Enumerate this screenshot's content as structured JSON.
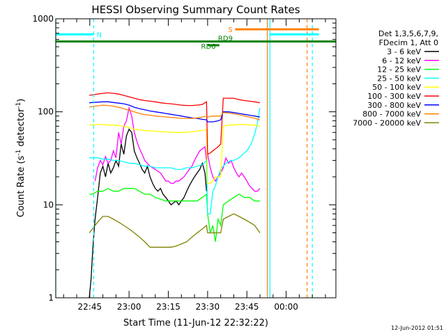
{
  "chart_data": {
    "type": "line",
    "title": "HESSI Observing Summary Count Rates",
    "xlabel": "Start Time (11-Jun-12 22:32:22)",
    "ylabel_parts": {
      "main": "Count Rate (s",
      "sup1": "-1",
      "mid": " detector",
      "sup2": "-1",
      "end": ")"
    },
    "y_scale": "log",
    "ylim": [
      1,
      1000
    ],
    "y_ticks": [
      {
        "value": 1,
        "label": "1"
      },
      {
        "value": 10,
        "label": "10"
      },
      {
        "value": 100,
        "label": "100"
      },
      {
        "value": 1000,
        "label": "1000"
      }
    ],
    "xlim_minutes": [
      0,
      107
    ],
    "x_ticks": [
      {
        "min": 13,
        "label": "22:45"
      },
      {
        "min": 28,
        "label": "23:00"
      },
      {
        "min": 43,
        "label": "23:15"
      },
      {
        "min": 58,
        "label": "23:30"
      },
      {
        "min": 73,
        "label": "23:45"
      },
      {
        "min": 88,
        "label": "00:00"
      }
    ],
    "legend": {
      "position": "right",
      "header": [
        "Det 1,3,5,6,7,9,",
        "FDecim 1, Att 0"
      ],
      "entries": [
        {
          "label": "3 - 6 keV",
          "color": "#000000"
        },
        {
          "label": "6 - 12 keV",
          "color": "#ff00ff"
        },
        {
          "label": "12 - 25 keV",
          "color": "#00ff00"
        },
        {
          "label": "25 - 50 keV",
          "color": "#00ffff"
        },
        {
          "label": "50 - 100 keV",
          "color": "#ffff00"
        },
        {
          "label": "100 - 300 keV",
          "color": "#ff0000"
        },
        {
          "label": "300 - 800 keV",
          "color": "#0000ff"
        },
        {
          "label": "800 - 7000 keV",
          "color": "#ff8000"
        },
        {
          "label": "7000 - 20000 keV",
          "color": "#808000"
        }
      ]
    },
    "series": [
      {
        "name": "3 - 6 keV",
        "color": "#000000",
        "x": [
          12.8,
          13.5,
          14.2,
          15,
          16,
          17,
          18,
          19,
          20,
          21,
          22,
          23,
          24,
          25,
          26,
          27,
          28,
          29,
          30,
          31,
          32,
          33,
          34,
          35,
          36,
          37,
          38,
          39,
          40,
          41,
          42,
          43,
          44,
          45,
          46,
          47,
          48,
          49,
          50,
          51,
          52,
          53,
          54,
          55,
          56,
          57,
          57.6
        ],
        "y": [
          1,
          1.6,
          3.5,
          7,
          12,
          22,
          26,
          20,
          28,
          22,
          25,
          30,
          26,
          45,
          35,
          55,
          65,
          60,
          38,
          32,
          28,
          24,
          22,
          26,
          20,
          17,
          15,
          14,
          15,
          13,
          12,
          11,
          10,
          10.5,
          11,
          10,
          11,
          12,
          14,
          16,
          18,
          20,
          22,
          24,
          28,
          22,
          14
        ]
      },
      {
        "name": "6 - 12 keV",
        "color": "#ff00ff",
        "x": [
          15,
          16,
          17,
          18,
          19,
          20,
          21,
          22,
          23,
          24,
          25,
          26,
          27,
          28,
          29,
          30,
          31,
          32,
          33,
          34,
          35,
          36,
          37,
          38,
          39,
          40,
          41,
          42,
          43,
          44,
          45,
          46,
          47,
          48,
          49,
          50,
          51,
          52,
          53,
          54,
          55,
          56,
          57,
          57.6,
          58,
          59,
          60,
          61,
          62,
          63,
          64,
          65,
          66,
          67,
          68,
          69,
          70,
          71,
          72,
          73,
          74,
          75,
          76,
          77,
          78
        ],
        "y": [
          18,
          25,
          30,
          27,
          33,
          28,
          30,
          38,
          32,
          60,
          45,
          70,
          80,
          110,
          90,
          60,
          48,
          40,
          35,
          30,
          28,
          26,
          25,
          24,
          23,
          22,
          20,
          18,
          18,
          17,
          17,
          18,
          18,
          19,
          20,
          22,
          24,
          26,
          30,
          34,
          38,
          40,
          42,
          30,
          35,
          25,
          20,
          18,
          20,
          22,
          25,
          32,
          28,
          30,
          25,
          22,
          20,
          22,
          20,
          18,
          16,
          15,
          14,
          14,
          15
        ]
      },
      {
        "name": "12 - 25 keV",
        "color": "#00ff00",
        "x": [
          12.8,
          14,
          16,
          18,
          20,
          22,
          24,
          26,
          28,
          30,
          32,
          34,
          36,
          38,
          40,
          42,
          44,
          46,
          48,
          50,
          52,
          54,
          56,
          57.6,
          58,
          59,
          60,
          61,
          62,
          63,
          64,
          66,
          68,
          70,
          72,
          74,
          76,
          78
        ],
        "y": [
          13,
          13,
          14,
          14,
          15,
          14,
          14,
          15,
          15,
          15,
          14,
          13,
          13,
          12,
          11.5,
          11,
          11,
          11,
          11,
          11,
          11,
          11,
          12,
          13,
          8,
          5,
          6,
          4,
          7,
          6,
          10,
          11,
          12,
          13,
          12,
          12,
          11,
          11
        ]
      },
      {
        "name": "25 - 50 keV",
        "color": "#00ffff",
        "x": [
          12.8,
          14,
          16,
          18,
          20,
          22,
          24,
          26,
          28,
          30,
          32,
          34,
          36,
          38,
          40,
          42,
          44,
          46,
          48,
          50,
          52,
          54,
          56,
          57.6,
          58,
          59,
          60,
          61,
          62,
          63,
          64,
          65,
          66,
          67,
          68,
          69,
          70,
          71,
          72,
          73,
          74,
          75,
          76,
          77,
          78
        ],
        "y": [
          32,
          32,
          32,
          31,
          31,
          30,
          30,
          29,
          28,
          28,
          27,
          26,
          26,
          25,
          25,
          25,
          25,
          24,
          24,
          25,
          25,
          26,
          27,
          30,
          8,
          8,
          14,
          16,
          20,
          24,
          26,
          28,
          29,
          30,
          30,
          31,
          32,
          34,
          36,
          38,
          42,
          48,
          58,
          75,
          110
        ]
      },
      {
        "name": "50 - 100 keV",
        "color": "#ffff00",
        "x": [
          12.8,
          14,
          16,
          18,
          20,
          22,
          24,
          26,
          28,
          30,
          32,
          34,
          36,
          38,
          40,
          42,
          44,
          46,
          48,
          50,
          52,
          54,
          56,
          57.6,
          58,
          59,
          60,
          61,
          62,
          63,
          64,
          66,
          68,
          70,
          72,
          74,
          76,
          78
        ],
        "y": [
          72,
          72,
          73,
          73,
          72,
          72,
          71,
          70,
          68,
          65,
          64,
          63,
          62,
          62,
          61,
          61,
          60,
          60,
          60,
          60,
          61,
          62,
          63,
          65,
          17,
          17,
          18,
          20,
          20,
          20,
          70,
          72,
          72,
          73,
          73,
          72,
          72,
          70
        ]
      },
      {
        "name": "100 - 300 keV",
        "color": "#ff0000",
        "x": [
          12.8,
          14,
          16,
          18,
          20,
          22,
          24,
          26,
          28,
          30,
          32,
          34,
          36,
          38,
          40,
          42,
          44,
          46,
          48,
          50,
          52,
          54,
          56,
          57.6,
          58,
          59,
          60,
          61,
          62,
          63,
          64,
          66,
          68,
          70,
          72,
          74,
          76,
          78
        ],
        "y": [
          150,
          152,
          155,
          158,
          160,
          158,
          155,
          150,
          145,
          140,
          135,
          132,
          130,
          128,
          125,
          123,
          122,
          120,
          118,
          117,
          117,
          118,
          120,
          128,
          35,
          36,
          38,
          40,
          42,
          45,
          140,
          140,
          140,
          135,
          132,
          130,
          128,
          125
        ]
      },
      {
        "name": "300 - 800 keV",
        "color": "#0000ff",
        "x": [
          12.8,
          14,
          16,
          18,
          20,
          22,
          24,
          26,
          28,
          30,
          32,
          34,
          36,
          38,
          40,
          42,
          44,
          46,
          48,
          50,
          52,
          54,
          56,
          57.6,
          58,
          60,
          62,
          63,
          64,
          66,
          68,
          70,
          72,
          74,
          76,
          78
        ],
        "y": [
          125,
          126,
          127,
          128,
          128,
          126,
          124,
          122,
          118,
          112,
          108,
          105,
          102,
          100,
          98,
          96,
          94,
          92,
          90,
          88,
          86,
          85,
          83,
          82,
          78,
          78,
          80,
          82,
          100,
          100,
          98,
          96,
          94,
          92,
          90,
          88
        ]
      },
      {
        "name": "800 - 7000 keV",
        "color": "#ff8000",
        "x": [
          12.8,
          14,
          16,
          18,
          20,
          22,
          24,
          26,
          28,
          30,
          32,
          34,
          36,
          38,
          40,
          42,
          44,
          46,
          48,
          50,
          52,
          54,
          56,
          57.6,
          58,
          60,
          62,
          63,
          64,
          66,
          68,
          70,
          72,
          74,
          76,
          78
        ],
        "y": [
          112,
          114,
          116,
          118,
          117,
          115,
          112,
          108,
          104,
          100,
          96,
          93,
          92,
          90,
          89,
          88,
          87,
          86,
          85,
          85,
          85,
          86,
          88,
          90,
          88,
          90,
          90,
          90,
          98,
          97,
          95,
          93,
          90,
          88,
          85,
          82
        ]
      },
      {
        "name": "7000 - 20000 keV",
        "color": "#808000",
        "x": [
          12.8,
          14,
          15,
          16,
          17,
          18,
          20,
          22,
          24,
          26,
          28,
          30,
          32,
          34,
          36,
          38,
          40,
          42,
          44,
          46,
          48,
          50,
          52,
          54,
          56,
          57.6,
          58,
          60,
          62,
          63,
          64,
          66,
          68,
          70,
          72,
          74,
          76,
          78
        ],
        "y": [
          5,
          5.5,
          6,
          6.5,
          7,
          7.5,
          7.5,
          7,
          6.5,
          6,
          5.5,
          5,
          4.5,
          4,
          3.5,
          3.5,
          3.5,
          3.5,
          3.5,
          3.6,
          3.8,
          4,
          4.5,
          5,
          5.5,
          6,
          5,
          5,
          5,
          5,
          7,
          7.5,
          8,
          7.5,
          7,
          6.5,
          6,
          5
        ]
      }
    ],
    "annotations": {
      "attenuator_bars": [
        {
          "label": "N",
          "color": "#00ffff",
          "x_start": 0,
          "x_end": 14.5,
          "y": 680,
          "dashed_x": 14.5
        },
        {
          "label": "S",
          "color": "#ff8000",
          "x_start": 68.5,
          "x_end": 100.5,
          "y": 770,
          "dashed_x": 96
        },
        {
          "label": "",
          "color": "#00ffff",
          "x_start": 81.8,
          "x_end": 100.5,
          "y": 680,
          "dashed_x": 98
        }
      ],
      "vertical_lines": [
        {
          "x": 0,
          "color": "#00ffff"
        },
        {
          "x": 80.8,
          "color": "#ff8000"
        },
        {
          "x": 81.8,
          "color": "#00ffff"
        }
      ],
      "rd_bars": [
        {
          "label": "RD9",
          "color": "#008000",
          "x_start": 0,
          "x_end": 107,
          "y": 570,
          "label_x": 62,
          "label_y": 610
        },
        {
          "label": "RD6",
          "color": "#008000",
          "x_start": 58,
          "x_end": 62.5,
          "y": 520,
          "label_x": 55.5,
          "label_y": 500
        }
      ]
    },
    "grid": false
  },
  "footer": {
    "timestamp": "12-Jun-2012 01:51"
  }
}
